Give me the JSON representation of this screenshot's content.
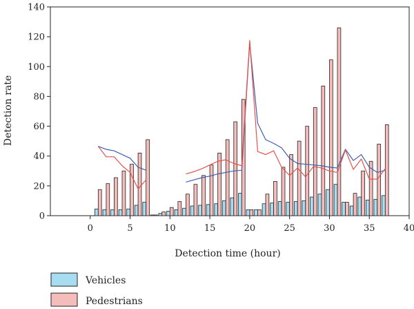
{
  "chart_data": {
    "type": "bar",
    "title": "",
    "xlabel": "Detection time (hour)",
    "ylabel": "Detection rate",
    "xlim": [
      -5,
      40
    ],
    "ylim": [
      0,
      140
    ],
    "xticks": [
      0,
      5,
      10,
      15,
      20,
      25,
      30,
      35,
      40
    ],
    "yticks": [
      0,
      20,
      40,
      60,
      80,
      100,
      120,
      140
    ],
    "grid": false,
    "legend_position": "bottom-left",
    "series": [
      {
        "name": "Vehicles",
        "kind": "bar",
        "color": "#a8dcf0",
        "x": [
          1,
          2,
          3,
          4,
          5,
          6,
          7,
          8,
          9,
          10,
          11,
          12,
          13,
          14,
          15,
          16,
          17,
          18,
          19,
          20,
          21,
          22,
          23,
          24,
          25,
          26,
          27,
          28,
          29,
          30,
          31,
          32,
          33,
          34,
          35,
          36,
          37
        ],
        "values": [
          4.5,
          4.0,
          4.0,
          4.0,
          4.5,
          7.0,
          9.0,
          0.5,
          1.5,
          3.0,
          4.0,
          5.0,
          6.5,
          7.0,
          7.5,
          8.0,
          10.0,
          12.0,
          15.0,
          4.0,
          4.0,
          8.0,
          8.5,
          9.5,
          9.0,
          9.5,
          10.0,
          12.5,
          14.5,
          17.5,
          21.0,
          9.0,
          6.5,
          12.5,
          10.5,
          11.0,
          13.5
        ]
      },
      {
        "name": "Pedestrians",
        "kind": "bar",
        "color": "#f5bcbc",
        "x": [
          1,
          2,
          3,
          4,
          5,
          6,
          7,
          8,
          9,
          10,
          11,
          12,
          13,
          14,
          15,
          16,
          17,
          18,
          19,
          20,
          21,
          22,
          23,
          24,
          25,
          26,
          27,
          28,
          29,
          30,
          31,
          32,
          33,
          34,
          35,
          36,
          37
        ],
        "values": [
          17.5,
          21.5,
          25.5,
          30.0,
          34.5,
          42.0,
          51.0,
          0.5,
          2.5,
          5.5,
          9.5,
          14.5,
          21.0,
          27.0,
          34.0,
          42.0,
          51.0,
          63.0,
          78.0,
          4.0,
          4.0,
          14.5,
          23.0,
          32.5,
          41.0,
          50.0,
          60.0,
          72.5,
          87.0,
          104.5,
          126.0,
          9.0,
          15.0,
          30.0,
          36.5,
          48.0,
          61.0
        ]
      },
      {
        "kind": "line",
        "color": "#3a5fb0",
        "x": [
          1,
          2,
          3,
          4,
          5,
          6,
          7,
          null,
          12,
          13,
          14,
          15,
          16,
          17,
          18,
          19,
          20,
          21,
          22,
          23,
          24,
          25,
          26,
          27,
          28,
          29,
          30,
          31,
          32,
          33,
          34,
          35,
          36,
          37
        ],
        "values": [
          46.5,
          44.5,
          43.5,
          41.0,
          38.5,
          32.5,
          30.5,
          null,
          22.5,
          24.0,
          25.5,
          26.5,
          28.0,
          29.0,
          30.0,
          30.5,
          116.0,
          62.0,
          51.0,
          48.5,
          45.5,
          38.5,
          35.0,
          34.5,
          34.0,
          33.5,
          32.5,
          32.0,
          44.5,
          37.0,
          41.0,
          32.5,
          29.0,
          30.5
        ]
      },
      {
        "kind": "line",
        "color": "#e8504a",
        "x": [
          1,
          2,
          3,
          4,
          5,
          6,
          7,
          null,
          12,
          13,
          14,
          15,
          16,
          17,
          18,
          19,
          20,
          21,
          22,
          23,
          24,
          25,
          26,
          27,
          28,
          29,
          30,
          31,
          32,
          33,
          34,
          35,
          36,
          37
        ],
        "values": [
          46.5,
          39.5,
          39.5,
          33.5,
          29.0,
          18.0,
          24.0,
          null,
          28.0,
          29.5,
          31.5,
          34.0,
          36.5,
          37.5,
          35.0,
          33.5,
          117.5,
          43.0,
          41.0,
          43.5,
          32.5,
          27.0,
          32.0,
          26.0,
          33.0,
          32.0,
          30.0,
          29.0,
          44.0,
          31.0,
          38.0,
          24.5,
          24.5,
          31.5
        ]
      }
    ]
  }
}
